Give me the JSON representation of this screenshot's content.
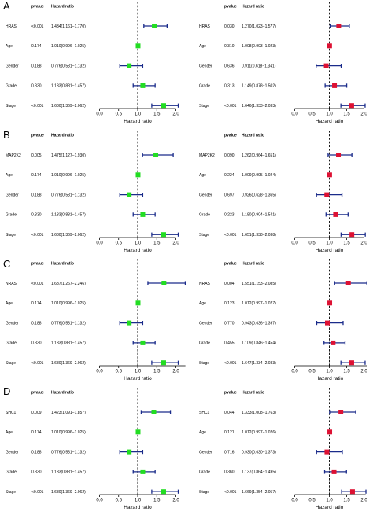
{
  "chart_data": [
    {
      "type": "forest",
      "panel": "A",
      "analysis": "univariate",
      "headers": {
        "pvalue": "pvalue",
        "hr": "Hazard ratio"
      },
      "xlabel": "Hazard ratio",
      "xlim": [
        0,
        2.0
      ],
      "xticks": [
        "0.0",
        "0.5",
        "1.0",
        "1.5",
        "2.0"
      ],
      "reference_line": 1.0,
      "color": "#22dd22",
      "rows": [
        {
          "label": "HRAS",
          "pvalue": "<0.001",
          "hr_text": "1.434(1.161−1.770)",
          "hr": 1.434,
          "lo": 1.161,
          "hi": 1.77
        },
        {
          "label": "Age",
          "pvalue": "0.174",
          "hr_text": "1.010(0.996−1.025)",
          "hr": 1.01,
          "lo": 0.996,
          "hi": 1.025
        },
        {
          "label": "Gender",
          "pvalue": "0.188",
          "hr_text": "0.776(0.531−1.132)",
          "hr": 0.776,
          "lo": 0.531,
          "hi": 1.132
        },
        {
          "label": "Grade",
          "pvalue": "0.330",
          "hr_text": "1.133(0.881−1.457)",
          "hr": 1.133,
          "lo": 0.881,
          "hi": 1.457
        },
        {
          "label": "Stage",
          "pvalue": "<0.001",
          "hr_text": "1.680(1.369−2.062)",
          "hr": 1.68,
          "lo": 1.369,
          "hi": 2.062
        }
      ]
    },
    {
      "type": "forest",
      "panel": "A",
      "analysis": "multivariate",
      "headers": {
        "pvalue": "pvalue",
        "hr": "Hazard ratio"
      },
      "xlabel": "Hazard ratio",
      "xlim": [
        0,
        2.0
      ],
      "xticks": [
        "0.0",
        "0.5",
        "1.0",
        "1.5",
        "2.0"
      ],
      "reference_line": 1.0,
      "color": "#dd1133",
      "rows": [
        {
          "label": "HRAS",
          "pvalue": "0.030",
          "hr_text": "1.270(1.023−1.577)",
          "hr": 1.27,
          "lo": 1.023,
          "hi": 1.577
        },
        {
          "label": "Age",
          "pvalue": "0.310",
          "hr_text": "1.008(0.993−1.023)",
          "hr": 1.008,
          "lo": 0.993,
          "hi": 1.023
        },
        {
          "label": "Gender",
          "pvalue": "0.636",
          "hr_text": "0.911(0.618−1.341)",
          "hr": 0.911,
          "lo": 0.618,
          "hi": 1.341
        },
        {
          "label": "Grade",
          "pvalue": "0.313",
          "hr_text": "1.149(0.878−1.502)",
          "hr": 1.149,
          "lo": 0.878,
          "hi": 1.502
        },
        {
          "label": "Stage",
          "pvalue": "<0.001",
          "hr_text": "1.646(1.333−2.033)",
          "hr": 1.646,
          "lo": 1.333,
          "hi": 2.033
        }
      ]
    },
    {
      "type": "forest",
      "panel": "B",
      "analysis": "univariate",
      "headers": {
        "pvalue": "pvalue",
        "hr": "Hazard ratio"
      },
      "xlabel": "Hazard ratio",
      "xlim": [
        0,
        2.0
      ],
      "xticks": [
        "0.0",
        "0.5",
        "1.0",
        "1.5",
        "2.0"
      ],
      "reference_line": 1.0,
      "color": "#22dd22",
      "rows": [
        {
          "label": "MAP2K2",
          "pvalue": "0.005",
          "hr_text": "1.475(1.127−1.930)",
          "hr": 1.475,
          "lo": 1.127,
          "hi": 1.93
        },
        {
          "label": "Age",
          "pvalue": "0.174",
          "hr_text": "1.010(0.996−1.025)",
          "hr": 1.01,
          "lo": 0.996,
          "hi": 1.025
        },
        {
          "label": "Gender",
          "pvalue": "0.188",
          "hr_text": "0.776(0.531−1.132)",
          "hr": 0.776,
          "lo": 0.531,
          "hi": 1.132
        },
        {
          "label": "Grade",
          "pvalue": "0.330",
          "hr_text": "1.133(0.881−1.457)",
          "hr": 1.133,
          "lo": 0.881,
          "hi": 1.457
        },
        {
          "label": "Stage",
          "pvalue": "<0.001",
          "hr_text": "1.680(1.369−2.062)",
          "hr": 1.68,
          "lo": 1.369,
          "hi": 2.062
        }
      ]
    },
    {
      "type": "forest",
      "panel": "B",
      "analysis": "multivariate",
      "headers": {
        "pvalue": "pvalue",
        "hr": "Hazard ratio"
      },
      "xlabel": "Hazard ratio",
      "xlim": [
        0,
        2.0
      ],
      "xticks": [
        "0.0",
        "0.5",
        "1.0",
        "1.5",
        "2.0"
      ],
      "reference_line": 1.0,
      "color": "#dd1133",
      "rows": [
        {
          "label": "MAP2K2",
          "pvalue": "0.090",
          "hr_text": "1.262(0.964−1.651)",
          "hr": 1.262,
          "lo": 0.964,
          "hi": 1.651
        },
        {
          "label": "Age",
          "pvalue": "0.224",
          "hr_text": "1.009(0.995−1.024)",
          "hr": 1.009,
          "lo": 0.995,
          "hi": 1.024
        },
        {
          "label": "Gender",
          "pvalue": "0.697",
          "hr_text": "0.926(0.628−1.365)",
          "hr": 0.926,
          "lo": 0.628,
          "hi": 1.365
        },
        {
          "label": "Grade",
          "pvalue": "0.223",
          "hr_text": "1.180(0.904−1.541)",
          "hr": 1.18,
          "lo": 0.904,
          "hi": 1.541
        },
        {
          "label": "Stage",
          "pvalue": "<0.001",
          "hr_text": "1.651(1.338−2.038)",
          "hr": 1.651,
          "lo": 1.338,
          "hi": 2.038
        }
      ]
    },
    {
      "type": "forest",
      "panel": "C",
      "analysis": "univariate",
      "headers": {
        "pvalue": "pvalue",
        "hr": "Hazard ratio"
      },
      "xlabel": "Hazard ratio",
      "xlim": [
        0,
        2.25
      ],
      "xticks": [
        "0.0",
        "0.5",
        "1.0",
        "1.5",
        "2.0"
      ],
      "reference_line": 1.0,
      "color": "#22dd22",
      "rows": [
        {
          "label": "NRAS",
          "pvalue": "<0.001",
          "hr_text": "1.687(1.267−2.246)",
          "hr": 1.687,
          "lo": 1.267,
          "hi": 2.246
        },
        {
          "label": "Age",
          "pvalue": "0.174",
          "hr_text": "1.010(0.996−1.025)",
          "hr": 1.01,
          "lo": 0.996,
          "hi": 1.025
        },
        {
          "label": "Gender",
          "pvalue": "0.188",
          "hr_text": "0.776(0.531−1.132)",
          "hr": 0.776,
          "lo": 0.531,
          "hi": 1.132
        },
        {
          "label": "Grade",
          "pvalue": "0.330",
          "hr_text": "1.133(0.881−1.457)",
          "hr": 1.133,
          "lo": 0.881,
          "hi": 1.457
        },
        {
          "label": "Stage",
          "pvalue": "<0.001",
          "hr_text": "1.680(1.369−2.062)",
          "hr": 1.68,
          "lo": 1.369,
          "hi": 2.062
        }
      ]
    },
    {
      "type": "forest",
      "panel": "C",
      "analysis": "multivariate",
      "headers": {
        "pvalue": "pvalue",
        "hr": "Hazard ratio"
      },
      "xlabel": "Hazard ratio",
      "xlim": [
        0,
        2.1
      ],
      "xticks": [
        "0.0",
        "0.5",
        "1.0",
        "1.5",
        "2.0"
      ],
      "reference_line": 1.0,
      "color": "#dd1133",
      "rows": [
        {
          "label": "NRAS",
          "pvalue": "0.004",
          "hr_text": "1.551(1.153−2.085)",
          "hr": 1.551,
          "lo": 1.153,
          "hi": 2.085
        },
        {
          "label": "Age",
          "pvalue": "0.123",
          "hr_text": "1.012(0.997−1.027)",
          "hr": 1.012,
          "lo": 0.997,
          "hi": 1.027
        },
        {
          "label": "Gender",
          "pvalue": "0.770",
          "hr_text": "0.943(0.636−1.397)",
          "hr": 0.943,
          "lo": 0.636,
          "hi": 1.397
        },
        {
          "label": "Grade",
          "pvalue": "0.455",
          "hr_text": "1.109(0.846−1.454)",
          "hr": 1.109,
          "lo": 0.846,
          "hi": 1.454
        },
        {
          "label": "Stage",
          "pvalue": "<0.001",
          "hr_text": "1.647(1.334−2.033)",
          "hr": 1.647,
          "lo": 1.334,
          "hi": 2.033
        }
      ]
    },
    {
      "type": "forest",
      "panel": "D",
      "analysis": "univariate",
      "headers": {
        "pvalue": "pvalue",
        "hr": "Hazard ratio"
      },
      "xlabel": "Hazard ratio",
      "xlim": [
        0,
        2.0
      ],
      "xticks": [
        "0.0",
        "0.5",
        "1.0",
        "1.5",
        "2.0"
      ],
      "reference_line": 1.0,
      "color": "#22dd22",
      "rows": [
        {
          "label": "SHC1",
          "pvalue": "0.009",
          "hr_text": "1.423(1.091−1.857)",
          "hr": 1.423,
          "lo": 1.091,
          "hi": 1.857
        },
        {
          "label": "Age",
          "pvalue": "0.174",
          "hr_text": "1.010(0.996−1.025)",
          "hr": 1.01,
          "lo": 0.996,
          "hi": 1.025
        },
        {
          "label": "Gender",
          "pvalue": "0.188",
          "hr_text": "0.776(0.531−1.132)",
          "hr": 0.776,
          "lo": 0.531,
          "hi": 1.132
        },
        {
          "label": "Grade",
          "pvalue": "0.330",
          "hr_text": "1.133(0.881−1.457)",
          "hr": 1.133,
          "lo": 0.881,
          "hi": 1.457
        },
        {
          "label": "Stage",
          "pvalue": "<0.001",
          "hr_text": "1.680(1.369−2.062)",
          "hr": 1.68,
          "lo": 1.369,
          "hi": 2.062
        }
      ]
    },
    {
      "type": "forest",
      "panel": "D",
      "analysis": "multivariate",
      "headers": {
        "pvalue": "pvalue",
        "hr": "Hazard ratio"
      },
      "xlabel": "Hazard ratio",
      "xlim": [
        0,
        2.05
      ],
      "xticks": [
        "0.0",
        "0.5",
        "1.0",
        "1.5",
        "2.0"
      ],
      "reference_line": 1.0,
      "color": "#dd1133",
      "rows": [
        {
          "label": "SHC1",
          "pvalue": "0.044",
          "hr_text": "1.333(1.008−1.763)",
          "hr": 1.333,
          "lo": 1.008,
          "hi": 1.763
        },
        {
          "label": "Age",
          "pvalue": "0.121",
          "hr_text": "1.012(0.997−1.026)",
          "hr": 1.012,
          "lo": 0.997,
          "hi": 1.026
        },
        {
          "label": "Gender",
          "pvalue": "0.716",
          "hr_text": "0.930(0.630−1.373)",
          "hr": 0.93,
          "lo": 0.63,
          "hi": 1.373
        },
        {
          "label": "Grade",
          "pvalue": "0.360",
          "hr_text": "1.137(0.864−1.495)",
          "hr": 1.137,
          "lo": 0.864,
          "hi": 1.495
        },
        {
          "label": "Stage",
          "pvalue": "<0.001",
          "hr_text": "1.669(1.354−2.057)",
          "hr": 1.669,
          "lo": 1.354,
          "hi": 2.057
        }
      ]
    }
  ]
}
